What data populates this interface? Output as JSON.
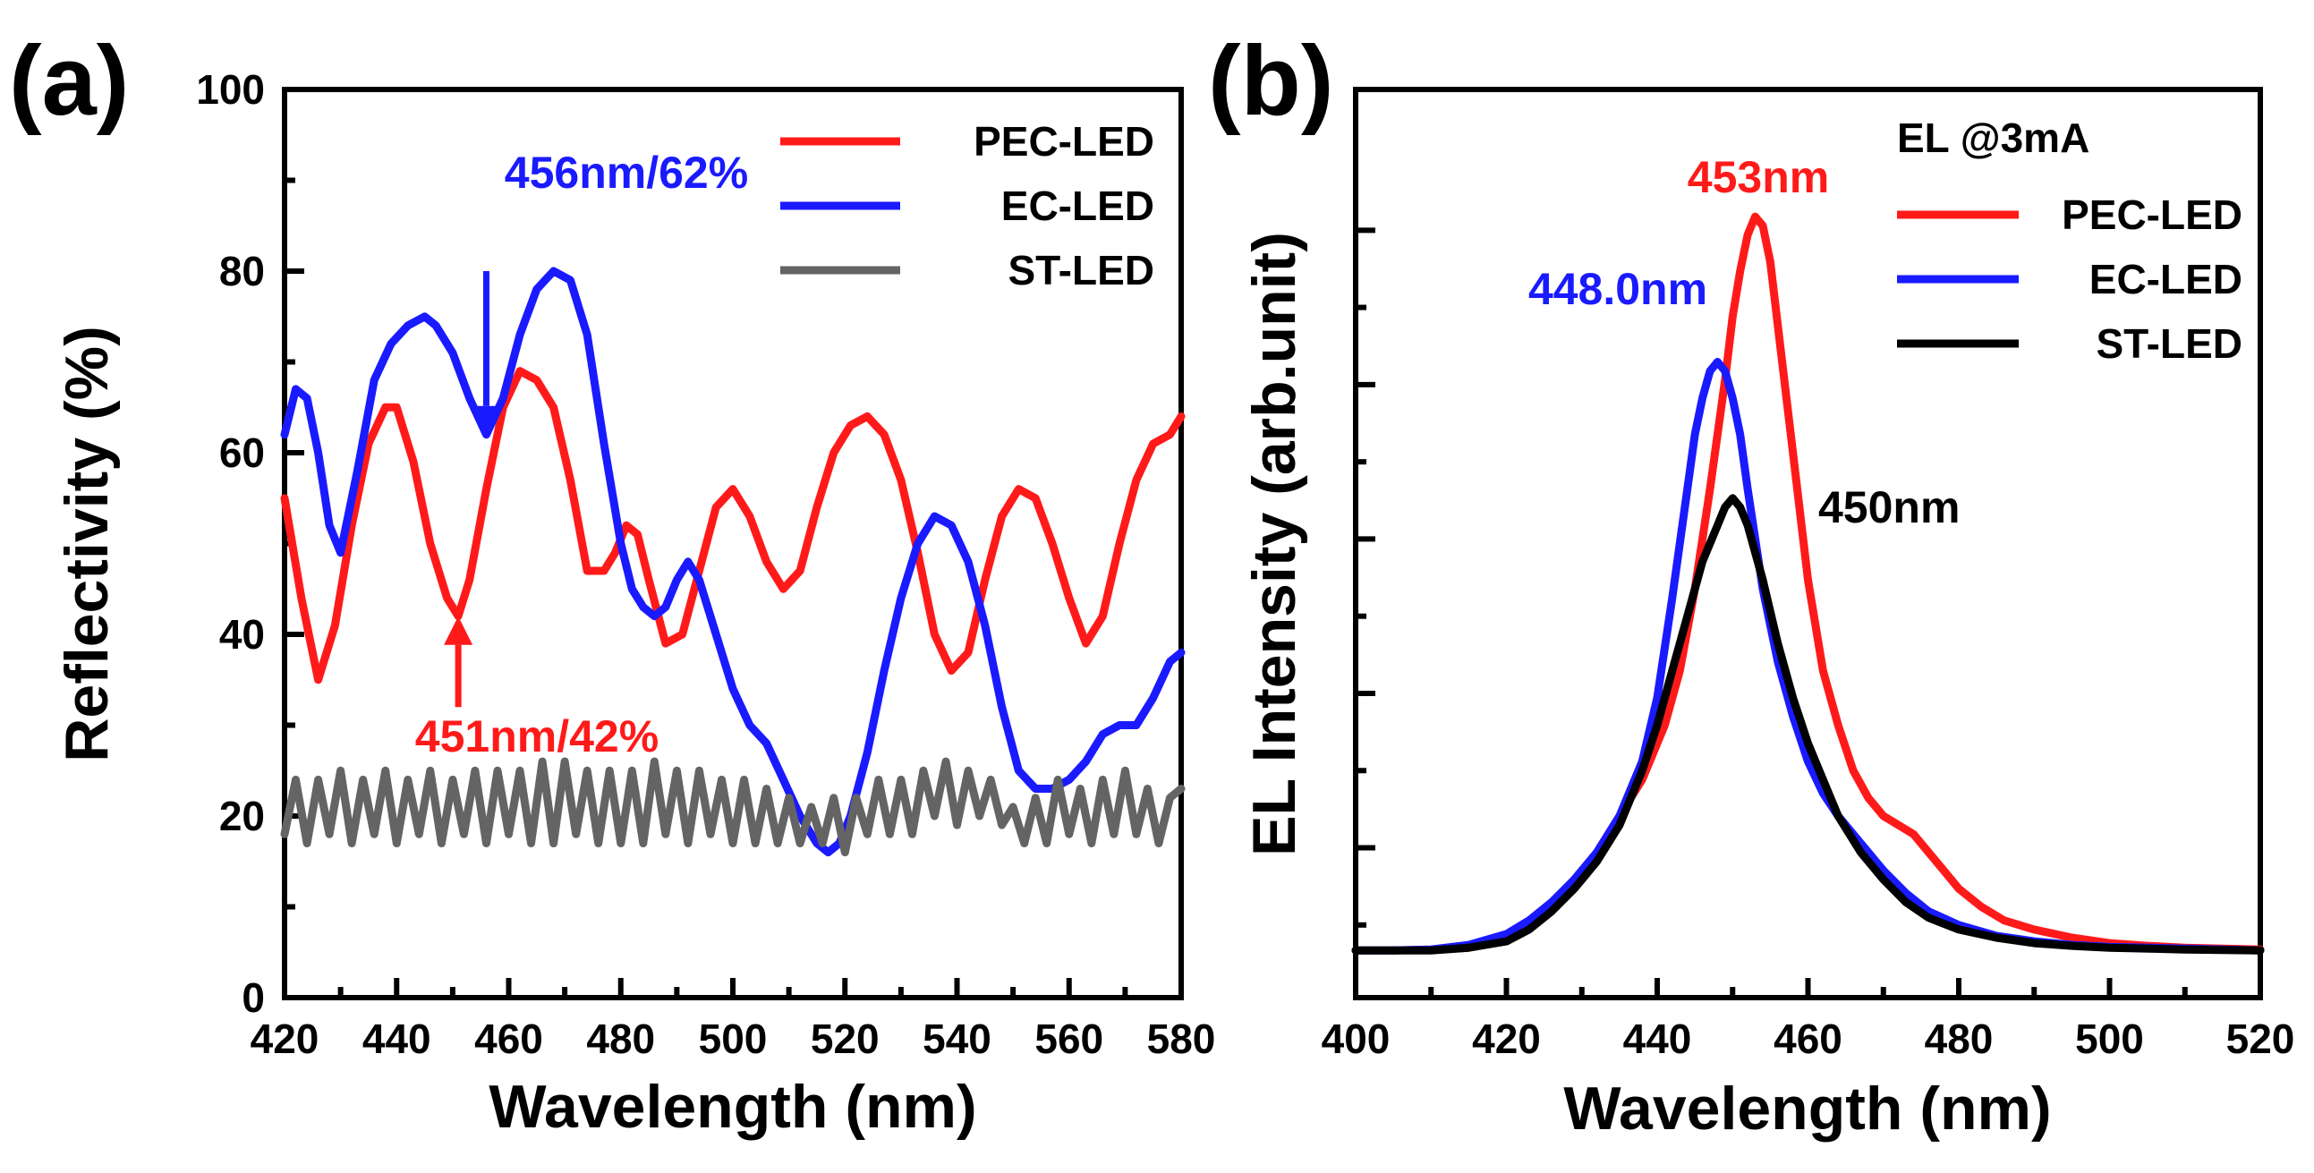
{
  "chart_data": [
    {
      "panel": "(a)",
      "type": "line",
      "xlabel": "Wavelength (nm)",
      "ylabel": "Reflectivity (%)",
      "xlim": [
        420,
        580
      ],
      "ylim": [
        0,
        100
      ],
      "xticks": [
        "420",
        "440",
        "460",
        "480",
        "500",
        "520",
        "540",
        "560",
        "580"
      ],
      "yticks": [
        "0",
        "20",
        "40",
        "60",
        "80",
        "100"
      ],
      "legend_position": "top-right",
      "series": [
        {
          "name": "PEC-LED",
          "color": "#ff1a1a",
          "x": [
            420,
            423,
            426,
            429,
            432,
            435,
            438,
            440,
            443,
            446,
            449,
            451,
            453,
            456,
            459,
            462,
            465,
            468,
            471,
            474,
            477,
            479,
            481,
            483,
            485,
            488,
            491,
            494,
            497,
            500,
            503,
            506,
            509,
            512,
            515,
            518,
            521,
            524,
            527,
            530,
            533,
            536,
            539,
            542,
            545,
            548,
            551,
            554,
            557,
            560,
            563,
            566,
            569,
            572,
            575,
            578,
            580
          ],
          "y": [
            55,
            44,
            35,
            41,
            52,
            61,
            65,
            65,
            59,
            50,
            44,
            42,
            46,
            56,
            65,
            69,
            68,
            65,
            57,
            47,
            47,
            49,
            52,
            51,
            46,
            39,
            40,
            47,
            54,
            56,
            53,
            48,
            45,
            47,
            54,
            60,
            63,
            64,
            62,
            57,
            49,
            40,
            36,
            38,
            46,
            53,
            56,
            55,
            50,
            44,
            39,
            42,
            50,
            57,
            61,
            62,
            64
          ]
        },
        {
          "name": "EC-LED",
          "color": "#1a1aff",
          "x": [
            420,
            422,
            424,
            426,
            428,
            430,
            433,
            436,
            439,
            442,
            445,
            447,
            450,
            453,
            456,
            459,
            462,
            465,
            468,
            471,
            474,
            477,
            480,
            482,
            484,
            486,
            488,
            490,
            492,
            494,
            497,
            500,
            503,
            506,
            509,
            512,
            515,
            517,
            519,
            521,
            524,
            527,
            530,
            533,
            536,
            539,
            542,
            545,
            548,
            551,
            554,
            557,
            560,
            563,
            566,
            569,
            572,
            575,
            578,
            580
          ],
          "y": [
            62,
            67,
            66,
            60,
            52,
            49,
            58,
            68,
            72,
            74,
            75,
            74,
            71,
            66,
            62,
            66,
            73,
            78,
            80,
            79,
            73,
            61,
            50,
            45,
            43,
            42,
            43,
            46,
            48,
            46,
            40,
            34,
            30,
            28,
            24,
            20,
            17,
            16,
            17,
            20,
            27,
            36,
            44,
            50,
            53,
            52,
            48,
            41,
            32,
            25,
            23,
            23,
            24,
            26,
            29,
            30,
            30,
            33,
            37,
            38
          ]
        },
        {
          "name": "ST-LED",
          "color": "#646464",
          "x": [
            420,
            422,
            424,
            426,
            428,
            430,
            432,
            434,
            436,
            438,
            440,
            442,
            444,
            446,
            448,
            450,
            452,
            454,
            456,
            458,
            460,
            462,
            464,
            466,
            468,
            470,
            472,
            474,
            476,
            478,
            480,
            482,
            484,
            486,
            488,
            490,
            492,
            494,
            496,
            498,
            500,
            502,
            504,
            506,
            508,
            510,
            512,
            514,
            516,
            518,
            520,
            522,
            524,
            526,
            528,
            530,
            532,
            534,
            536,
            538,
            540,
            542,
            544,
            546,
            548,
            550,
            552,
            554,
            556,
            558,
            560,
            562,
            564,
            566,
            568,
            570,
            572,
            574,
            576,
            578,
            580
          ],
          "y": [
            18,
            24,
            17,
            24,
            18,
            25,
            17,
            24,
            18,
            25,
            17,
            24,
            18,
            25,
            17,
            24,
            18,
            25,
            17,
            25,
            18,
            25,
            17,
            26,
            17,
            26,
            18,
            25,
            17,
            25,
            17,
            25,
            17,
            26,
            18,
            25,
            17,
            25,
            18,
            24,
            17,
            24,
            17,
            23,
            17,
            22,
            17,
            21,
            17,
            22,
            16,
            22,
            18,
            24,
            18,
            24,
            18,
            25,
            20,
            26,
            19,
            25,
            20,
            24,
            19,
            21,
            17,
            22,
            17,
            24,
            18,
            23,
            17,
            24,
            18,
            25,
            18,
            23,
            17,
            22,
            23
          ]
        }
      ],
      "annotations": [
        {
          "text": "456nm/62%",
          "color": "#1a1aff",
          "arrow_to": [
            456,
            62
          ],
          "arrow_from": [
            456,
            80
          ]
        },
        {
          "text": "451nm/42%",
          "color": "#ff1a1a",
          "arrow_to": [
            451,
            42
          ],
          "arrow_from": [
            451,
            32
          ]
        }
      ]
    },
    {
      "panel": "(b)",
      "type": "line",
      "xlabel": "Wavelength (nm)",
      "ylabel": "EL Intensity (arb.unit)",
      "xlim": [
        400,
        520
      ],
      "ylim": [
        0,
        1
      ],
      "xticks": [
        "400",
        "420",
        "440",
        "460",
        "480",
        "500",
        "520"
      ],
      "yticks": [],
      "legend_title": "EL @3mA",
      "legend_position": "top-right",
      "series": [
        {
          "name": "PEC-LED",
          "color": "#ff1a1a",
          "x": [
            400,
            405,
            410,
            415,
            420,
            423,
            426,
            429,
            432,
            435,
            438,
            441,
            443,
            445,
            447,
            449,
            450,
            451,
            452,
            453,
            454,
            455,
            456,
            458,
            460,
            462,
            464,
            466,
            468,
            470,
            472,
            474,
            476,
            478,
            480,
            483,
            486,
            490,
            495,
            500,
            505,
            510,
            515,
            520
          ],
          "y": [
            0.052,
            0.052,
            0.053,
            0.055,
            0.065,
            0.078,
            0.1,
            0.125,
            0.16,
            0.2,
            0.24,
            0.3,
            0.36,
            0.45,
            0.56,
            0.68,
            0.75,
            0.8,
            0.84,
            0.86,
            0.85,
            0.81,
            0.74,
            0.6,
            0.46,
            0.36,
            0.3,
            0.25,
            0.22,
            0.2,
            0.19,
            0.18,
            0.16,
            0.14,
            0.12,
            0.1,
            0.085,
            0.075,
            0.066,
            0.06,
            0.057,
            0.055,
            0.054,
            0.053
          ]
        },
        {
          "name": "EC-LED",
          "color": "#1a1aff",
          "x": [
            400,
            405,
            410,
            415,
            420,
            423,
            426,
            429,
            432,
            435,
            438,
            440,
            442,
            444,
            445,
            446,
            447,
            448,
            449,
            450,
            451,
            452,
            454,
            456,
            458,
            460,
            462,
            464,
            467,
            470,
            473,
            476,
            480,
            485,
            490,
            495,
            500,
            510,
            520
          ],
          "y": [
            0.052,
            0.052,
            0.053,
            0.058,
            0.07,
            0.085,
            0.105,
            0.13,
            0.16,
            0.2,
            0.26,
            0.33,
            0.44,
            0.56,
            0.62,
            0.66,
            0.69,
            0.7,
            0.69,
            0.66,
            0.62,
            0.56,
            0.45,
            0.37,
            0.31,
            0.26,
            0.225,
            0.2,
            0.17,
            0.14,
            0.115,
            0.095,
            0.08,
            0.068,
            0.062,
            0.058,
            0.056,
            0.054,
            0.052
          ]
        },
        {
          "name": "ST-LED",
          "color": "#000000",
          "x": [
            400,
            405,
            410,
            415,
            420,
            423,
            426,
            429,
            432,
            435,
            438,
            440,
            442,
            444,
            446,
            448,
            449,
            450,
            451,
            452,
            454,
            456,
            458,
            460,
            462,
            464,
            467,
            470,
            473,
            476,
            480,
            485,
            490,
            495,
            500,
            510,
            520
          ],
          "y": [
            0.052,
            0.052,
            0.052,
            0.055,
            0.062,
            0.075,
            0.095,
            0.12,
            0.15,
            0.19,
            0.25,
            0.3,
            0.36,
            0.42,
            0.48,
            0.52,
            0.54,
            0.55,
            0.54,
            0.52,
            0.46,
            0.39,
            0.33,
            0.28,
            0.24,
            0.2,
            0.16,
            0.13,
            0.105,
            0.088,
            0.075,
            0.066,
            0.06,
            0.057,
            0.055,
            0.053,
            0.052
          ]
        }
      ],
      "annotations": [
        {
          "text": "453nm",
          "color": "#ff1a1a",
          "near": [
            453,
            0.86
          ]
        },
        {
          "text": "448.0nm",
          "color": "#1a1aff",
          "near": [
            448,
            0.7
          ]
        },
        {
          "text": "450nm",
          "color": "#000000",
          "near": [
            450,
            0.55
          ]
        }
      ]
    }
  ]
}
